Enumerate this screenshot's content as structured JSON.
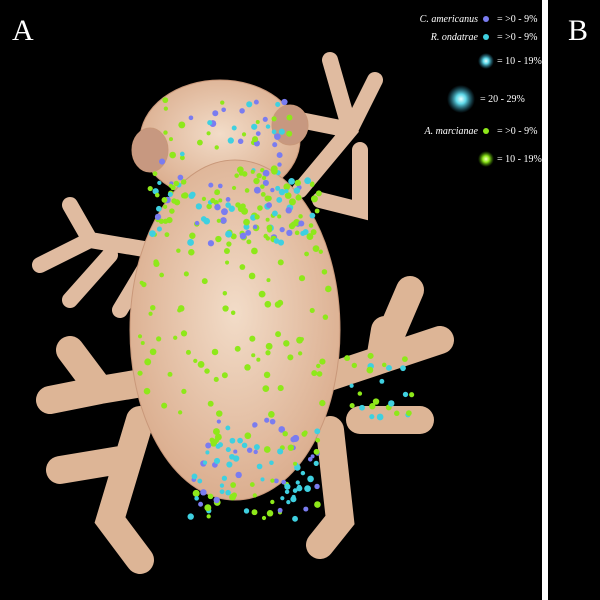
{
  "panels": [
    {
      "label": "A"
    },
    {
      "label": "B"
    }
  ],
  "legend": {
    "items": [
      {
        "species": "C. americanus",
        "range": "= >0 - 9%"
      },
      {
        "species": "R. ondatrae",
        "range": "= >0 - 9%"
      },
      {
        "range": "= 10 - 19%"
      },
      {
        "range": "= 20 - 29%"
      },
      {
        "species": "A. marcianae",
        "range": "= >0 - 9%"
      },
      {
        "range": "= 10 - 19%"
      }
    ]
  }
}
